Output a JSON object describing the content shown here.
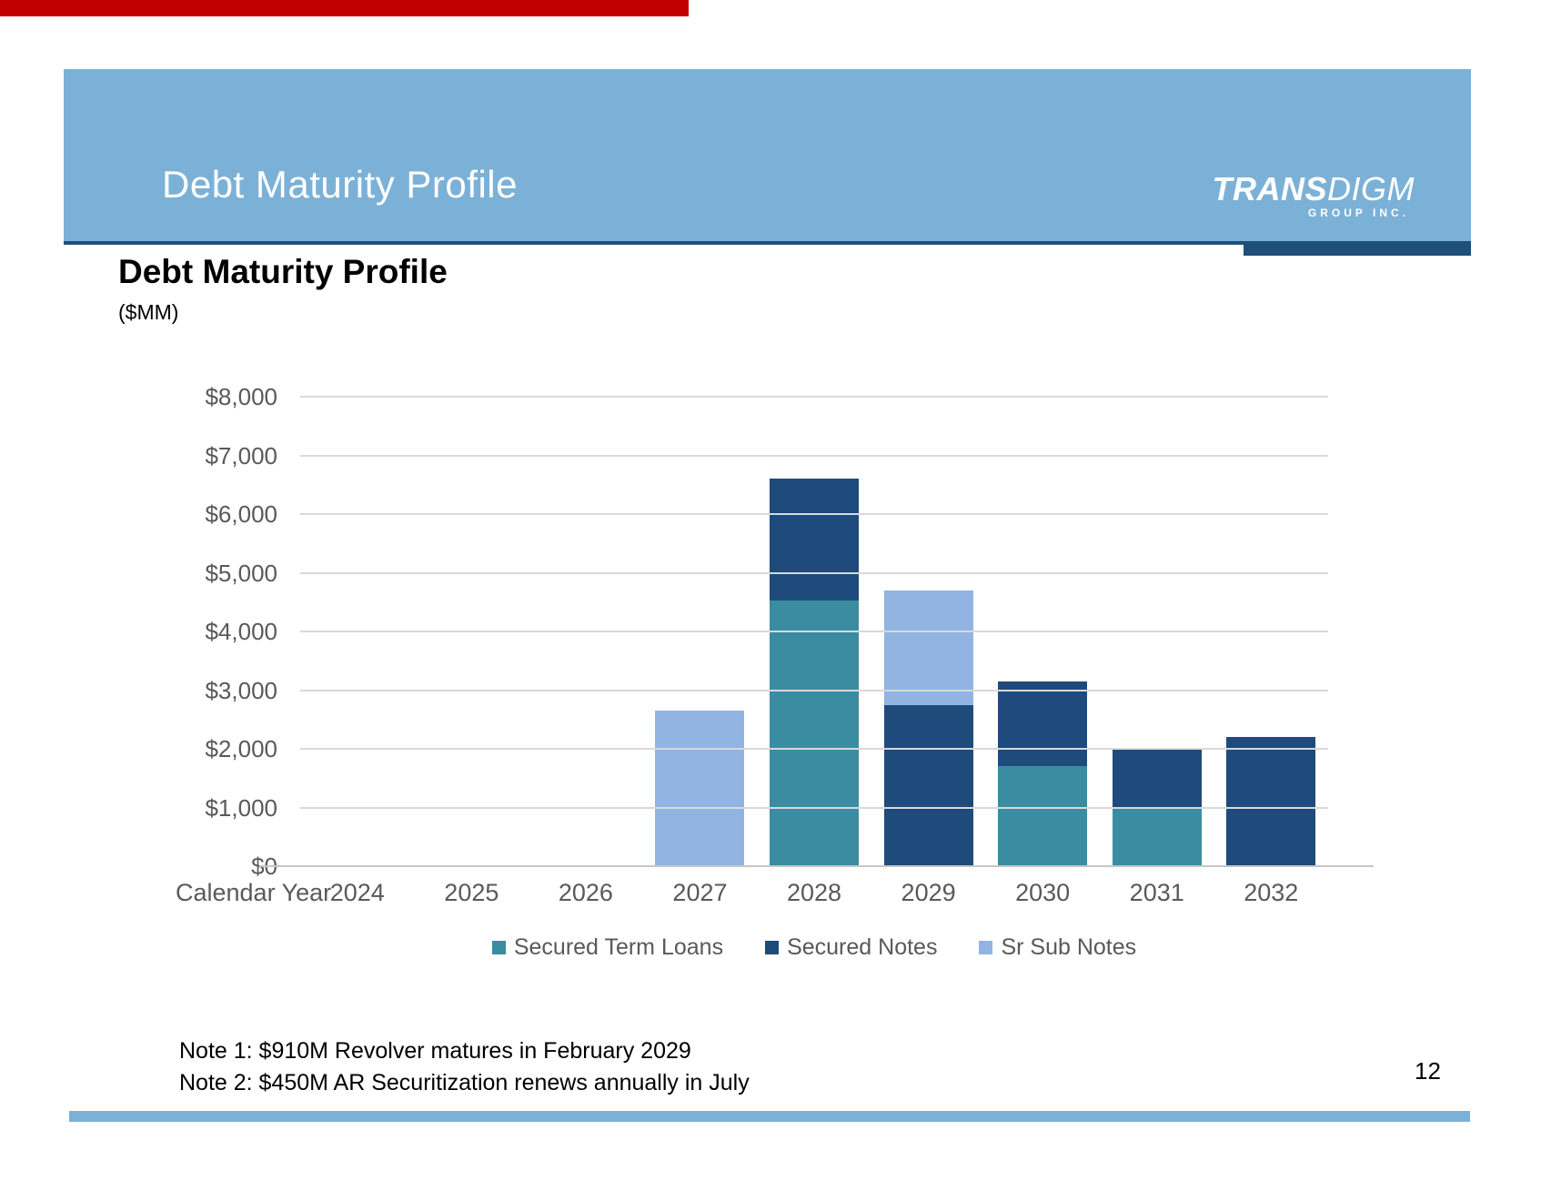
{
  "top_bar": {
    "color": "#C00000"
  },
  "header": {
    "title": "Debt Maturity Profile",
    "band_color": "#7CB1D7",
    "rule_color": "#1F4E79",
    "logo": {
      "part_bold": "TRANS",
      "part_light": "DIGM",
      "subtitle": "GROUP INC."
    }
  },
  "heading": {
    "title": "Debt Maturity Profile",
    "subtitle": "($MM)"
  },
  "chart_data": {
    "type": "bar",
    "stacked": true,
    "title": "Debt Maturity Profile",
    "units": "$MM",
    "xlabel": "Calendar Year",
    "ylabel": "",
    "ylim": [
      0,
      8000
    ],
    "ytick_interval": 1000,
    "ytick_labels": [
      "$0",
      "$1,000",
      "$2,000",
      "$3,000",
      "$4,000",
      "$5,000",
      "$6,000",
      "$7,000",
      "$8,000"
    ],
    "grid": true,
    "grid_color": "#D9D9D9",
    "axis_line_color": "#C6C6C6",
    "axis_text_color": "#595959",
    "legend_position": "bottom",
    "categories": [
      "2024",
      "2025",
      "2026",
      "2027",
      "2028",
      "2029",
      "2030",
      "2031",
      "2032"
    ],
    "series": [
      {
        "name": "Secured Term Loans",
        "color": "#3A8CA0",
        "values": [
          0,
          0,
          0,
          0,
          4525,
          0,
          1700,
          1000,
          0
        ]
      },
      {
        "name": "Secured Notes",
        "color": "#1F4A7C",
        "values": [
          0,
          0,
          0,
          0,
          2075,
          2750,
          1450,
          1000,
          2200
        ]
      },
      {
        "name": "Sr Sub Notes",
        "color": "#92B4E2",
        "values": [
          0,
          0,
          0,
          2650,
          0,
          1950,
          0,
          0,
          0
        ]
      }
    ]
  },
  "notes": [
    "Note 1: $910M Revolver matures in February 2029",
    "Note 2: $450M AR Securitization renews annually in July"
  ],
  "page_number": "12",
  "footer_bar_color": "#7CB1D7"
}
